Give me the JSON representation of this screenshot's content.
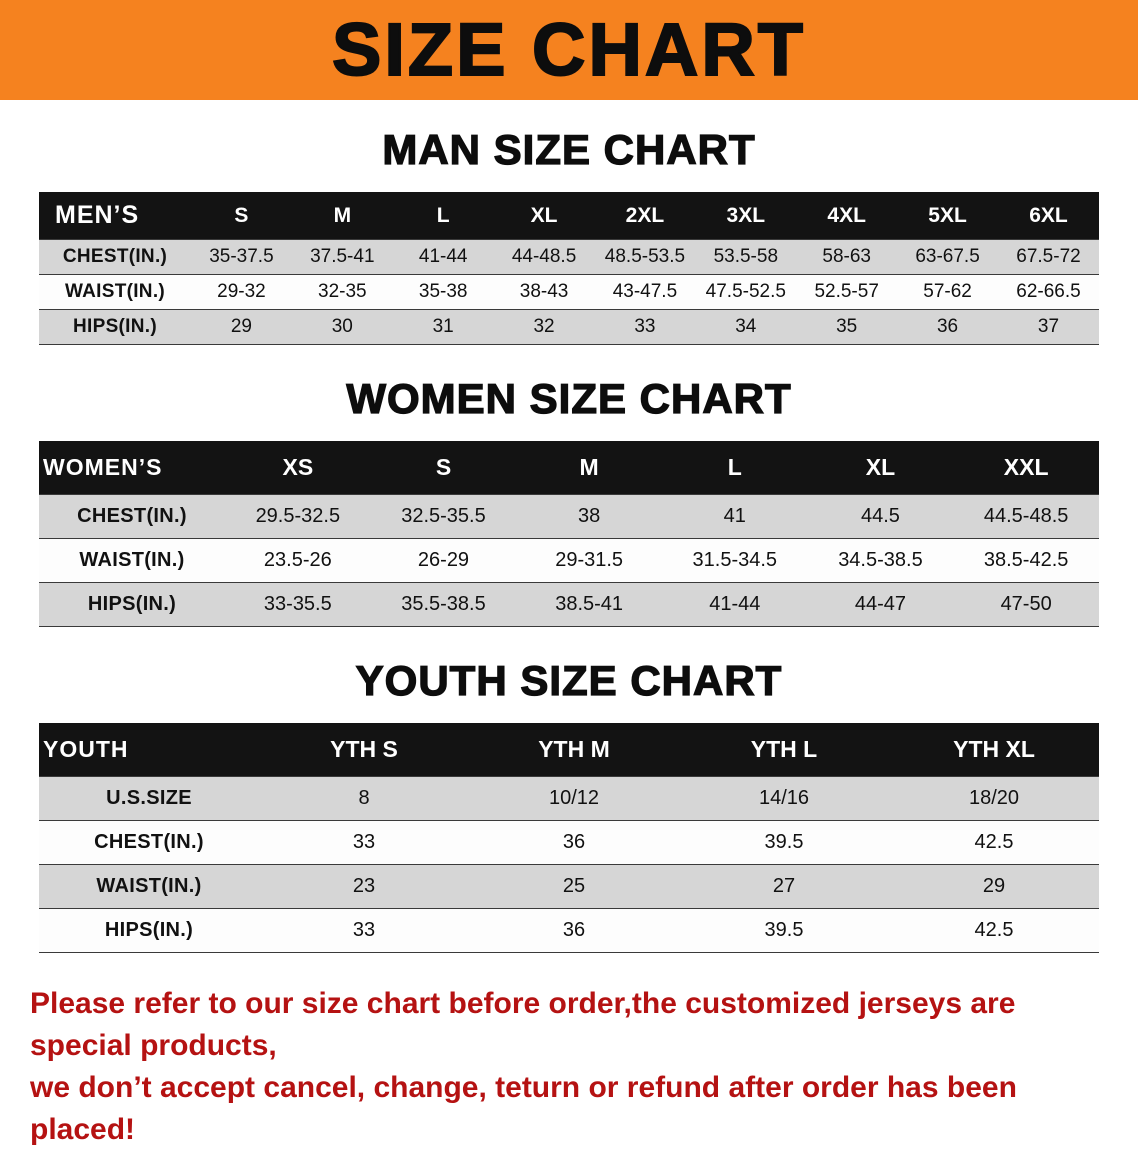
{
  "banner": {
    "title": "SIZE CHART",
    "background": "#f5821f"
  },
  "men": {
    "heading": "MAN SIZE CHART",
    "table": {
      "title": "MEN’S",
      "columns": [
        "S",
        "M",
        "L",
        "XL",
        "2XL",
        "3XL",
        "4XL",
        "5XL",
        "6XL"
      ],
      "rows": [
        {
          "label": "CHEST(IN.)",
          "values": [
            "35-37.5",
            "37.5-41",
            "41-44",
            "44-48.5",
            "48.5-53.5",
            "53.5-58",
            "58-63",
            "63-67.5",
            "67.5-72"
          ]
        },
        {
          "label": "WAIST(IN.)",
          "values": [
            "29-32",
            "32-35",
            "35-38",
            "38-43",
            "43-47.5",
            "47.5-52.5",
            "52.5-57",
            "57-62",
            "62-66.5"
          ]
        },
        {
          "label": "HIPS(IN.)",
          "values": [
            "29",
            "30",
            "31",
            "32",
            "33",
            "34",
            "35",
            "36",
            "37"
          ]
        }
      ]
    }
  },
  "women": {
    "heading": "WOMEN SIZE CHART",
    "table": {
      "title": "WOMEN’S",
      "columns": [
        "XS",
        "S",
        "M",
        "L",
        "XL",
        "XXL"
      ],
      "rows": [
        {
          "label": "CHEST(IN.)",
          "values": [
            "29.5-32.5",
            "32.5-35.5",
            "38",
            "41",
            "44.5",
            "44.5-48.5"
          ]
        },
        {
          "label": "WAIST(IN.)",
          "values": [
            "23.5-26",
            "26-29",
            "29-31.5",
            "31.5-34.5",
            "34.5-38.5",
            "38.5-42.5"
          ]
        },
        {
          "label": "HIPS(IN.)",
          "values": [
            "33-35.5",
            "35.5-38.5",
            "38.5-41",
            "41-44",
            "44-47",
            "47-50"
          ]
        }
      ]
    }
  },
  "youth": {
    "heading": "YOUTH SIZE CHART",
    "table": {
      "title": "YOUTH",
      "columns": [
        "YTH S",
        "YTH M",
        "YTH L",
        "YTH XL"
      ],
      "rows": [
        {
          "label": "U.S.SIZE",
          "values": [
            "8",
            "10/12",
            "14/16",
            "18/20"
          ]
        },
        {
          "label": "CHEST(IN.)",
          "values": [
            "33",
            "36",
            "39.5",
            "42.5"
          ]
        },
        {
          "label": "WAIST(IN.)",
          "values": [
            "23",
            "25",
            "27",
            "29"
          ]
        },
        {
          "label": "HIPS(IN.)",
          "values": [
            "33",
            "36",
            "39.5",
            "42.5"
          ]
        }
      ]
    }
  },
  "footer": {
    "line1": "Please refer to our size chart before order,the customized jerseys are special products,",
    "line2": "we don’t accept cancel, change, teturn or refund after order has been placed!",
    "color": "#b51212"
  }
}
